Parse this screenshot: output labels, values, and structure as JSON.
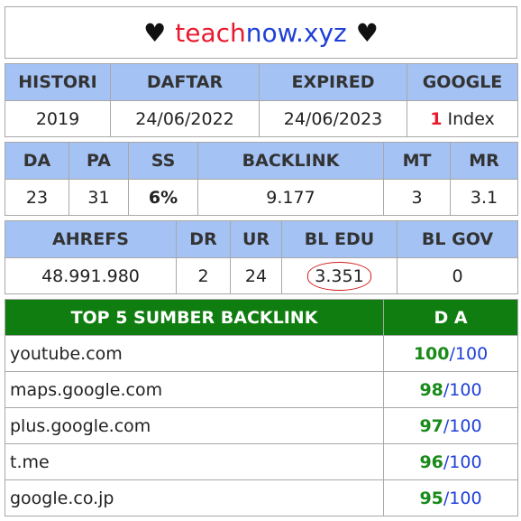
{
  "site": {
    "heart": "♥",
    "part1": "teach",
    "part2": "now.xyz"
  },
  "table1": {
    "headers": [
      "HISTORI",
      "DAFTAR",
      "EXPIRED",
      "GOOGLE"
    ],
    "values": {
      "histori": "2019",
      "daftar": "24/06/2022",
      "expired": "24/06/2023",
      "google_count": "1",
      "google_label": "Index"
    }
  },
  "table2": {
    "headers": [
      "DA",
      "PA",
      "SS",
      "BACKLINK",
      "MT",
      "MR"
    ],
    "values": [
      "23",
      "31",
      "6%",
      "9.177",
      "3",
      "3.1"
    ]
  },
  "table3": {
    "headers": [
      "AHREFS",
      "DR",
      "UR",
      "BL EDU",
      "BL GOV"
    ],
    "values": [
      "48.991.980",
      "2",
      "24",
      "3.351",
      "0"
    ]
  },
  "top5": {
    "header_title": "TOP 5 SUMBER BACKLINK",
    "header_da": "D A",
    "rows": [
      {
        "site": "youtube.com",
        "da": "100",
        "max": "100"
      },
      {
        "site": "maps.google.com",
        "da": "98",
        "max": "100"
      },
      {
        "site": "plus.google.com",
        "da": "97",
        "max": "100"
      },
      {
        "site": "t.me",
        "da": "96",
        "max": "100"
      },
      {
        "site": "google.co.jp",
        "da": "95",
        "max": "100"
      }
    ]
  },
  "colors": {
    "header_blue": "#a4c2f4",
    "header_green": "#0f7d0f",
    "accent_red": "#e8192c",
    "accent_blue": "#1f3fd8",
    "accent_green": "#1a8a1a"
  }
}
